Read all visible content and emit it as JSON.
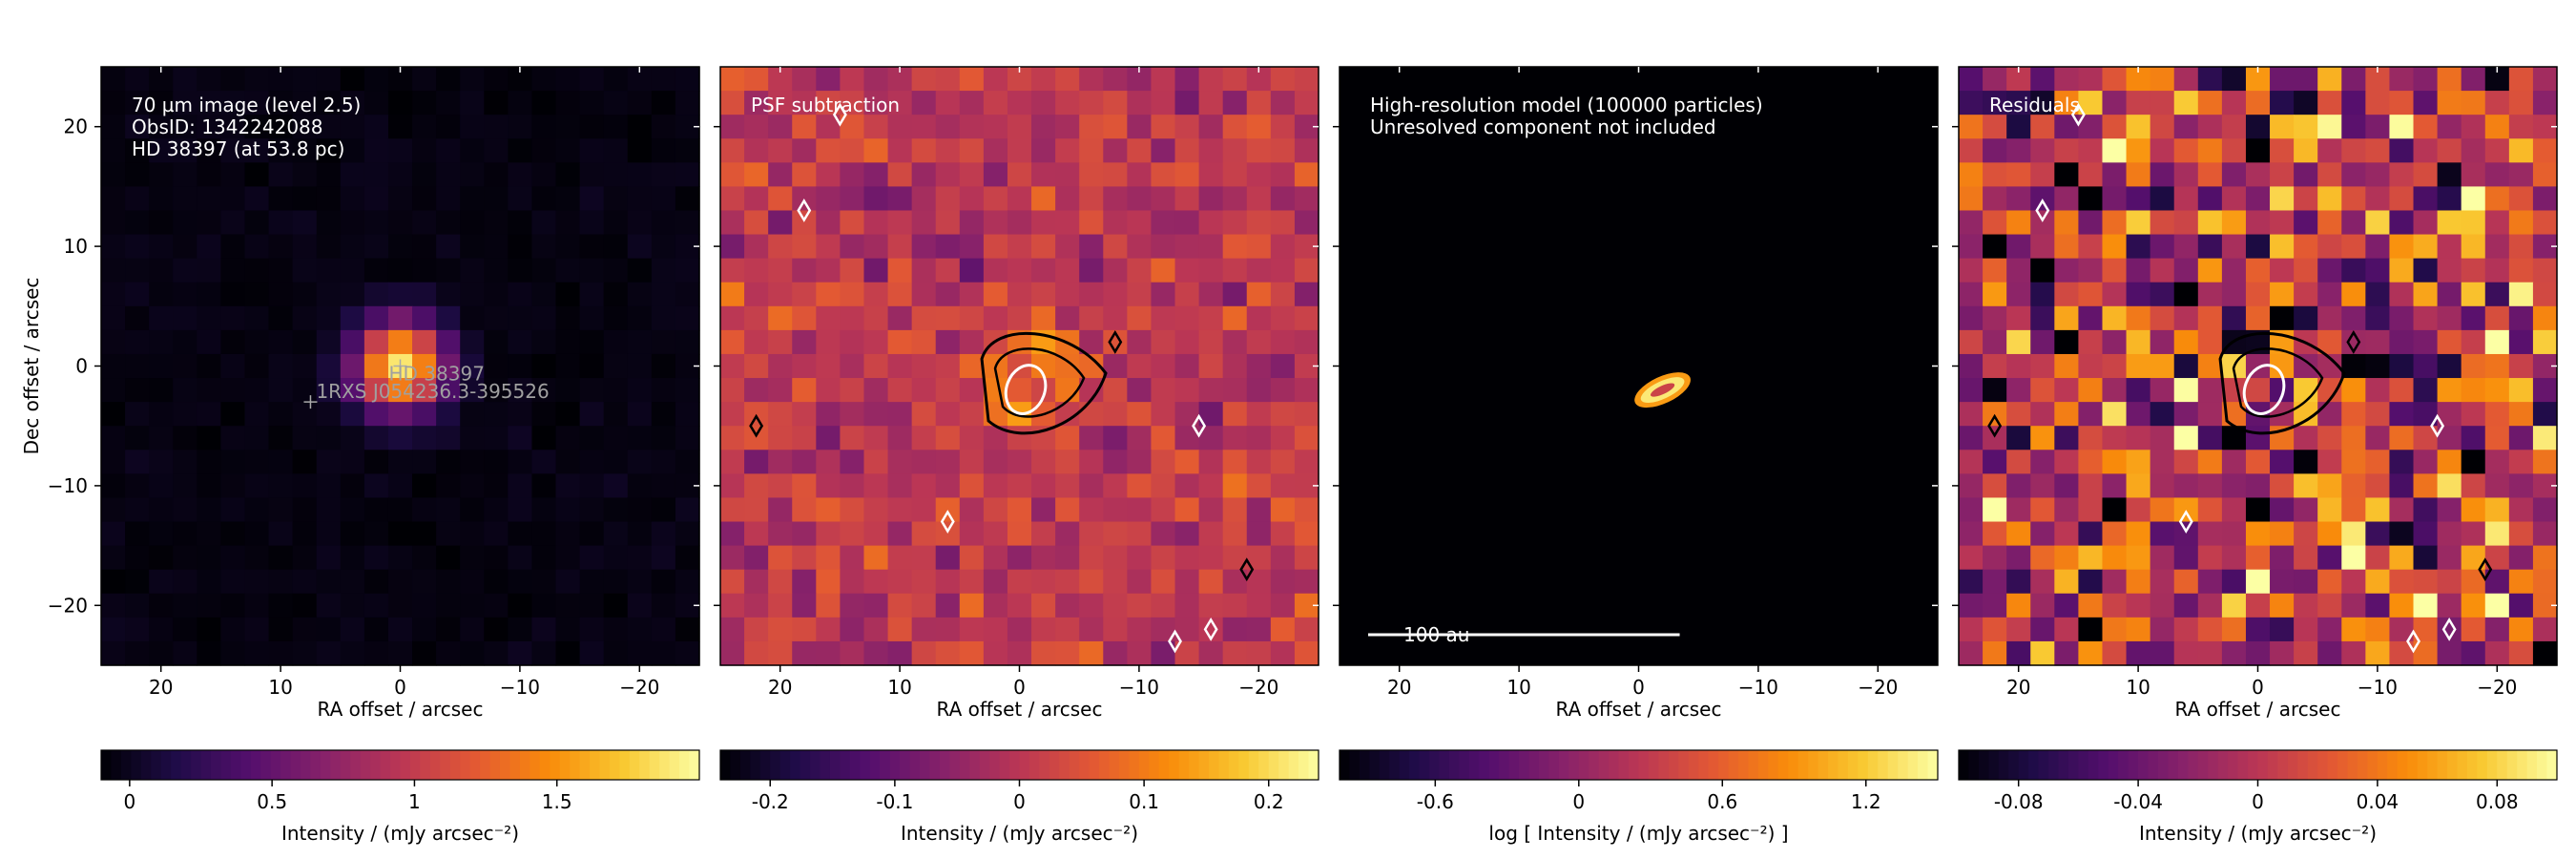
{
  "chart_data": [
    {
      "type": "heatmap",
      "panel": "observation",
      "annotations": [
        "70 µm image (level 2.5)",
        "ObsID: 1342242088",
        "HD 38397 (at 53.8 pc)"
      ],
      "sources": [
        {
          "label": "HD 38397",
          "ra": 0.0,
          "dec": 0.0
        },
        {
          "label": "1RXS J054236.3-395526",
          "ra": 7.5,
          "dec": -3.0
        }
      ],
      "xlabel": "RA offset / arcsec",
      "ylabel": "Dec offset / arcsec",
      "xlim": [
        25,
        -25
      ],
      "ylim": [
        -25,
        25
      ],
      "x_ticks": [
        "20",
        "10",
        "0",
        "−10",
        "−20"
      ],
      "y_ticks": [
        "20",
        "10",
        "0",
        "−10",
        "−20"
      ],
      "colormap": "inferno",
      "colorbar": {
        "label": "Intensity / (mJy arcsec⁻²)",
        "range": [
          -0.1,
          2.0
        ],
        "ticks": [
          0,
          0.5,
          1,
          1.5
        ],
        "tick_labels": [
          "0",
          "0.5",
          "1",
          "1.5"
        ]
      },
      "source_model": {
        "peak": 1.95,
        "sigma_arcsec": 2.6,
        "background": -0.05
      }
    },
    {
      "type": "heatmap",
      "panel": "psf-subtraction",
      "annotations": [
        "PSF subtraction"
      ],
      "xlabel": "RA offset / arcsec",
      "xlim": [
        25,
        -25
      ],
      "ylim": [
        -25,
        25
      ],
      "x_ticks": [
        "20",
        "10",
        "0",
        "−10",
        "−20"
      ],
      "colormap": "inferno",
      "colorbar": {
        "label": "Intensity / (mJy arcsec⁻²)",
        "range": [
          -0.24,
          0.24
        ],
        "ticks": [
          -0.2,
          -0.1,
          0,
          0.1,
          0.2
        ],
        "tick_labels": [
          "-0.2",
          "-0.1",
          "0",
          "0.1",
          "0.2"
        ]
      },
      "contours": {
        "positive_color": "#000000",
        "negative_color": "#ffffff"
      }
    },
    {
      "type": "heatmap",
      "panel": "model",
      "annotations": [
        "High-resolution model (100000 particles)",
        "Unresolved component not included"
      ],
      "scale_bar": {
        "label": "100 au",
        "length_arcsec": 1.86
      },
      "xlabel": "RA offset / arcsec",
      "xlim": [
        25,
        -25
      ],
      "ylim": [
        -25,
        25
      ],
      "x_ticks": [
        "20",
        "10",
        "0",
        "−10",
        "−20"
      ],
      "colormap": "inferno",
      "colorbar": {
        "label": "log [ Intensity / (mJy arcsec⁻²) ]",
        "range": [
          -1.0,
          1.5
        ],
        "ticks": [
          -0.6,
          0,
          0.6,
          1.2
        ],
        "tick_labels": [
          "-0.6",
          "0",
          "0.6",
          "1.2"
        ]
      },
      "disk_model": {
        "center_ra": -2.0,
        "center_dec": -2.0,
        "semi_major_arcsec": 2.2,
        "semi_minor_arcsec": 0.5,
        "position_angle_deg": 25
      }
    },
    {
      "type": "heatmap",
      "panel": "residuals",
      "annotations": [
        "Residuals"
      ],
      "xlabel": "RA offset / arcsec",
      "xlim": [
        25,
        -25
      ],
      "ylim": [
        -25,
        25
      ],
      "x_ticks": [
        "20",
        "10",
        "0",
        "−10",
        "−20"
      ],
      "colormap": "inferno",
      "colorbar": {
        "label": "Intensity / (mJy arcsec⁻²)",
        "range": [
          -0.1,
          0.1
        ],
        "ticks": [
          -0.08,
          -0.04,
          0,
          0.04,
          0.08
        ],
        "tick_labels": [
          "-0.08",
          "-0.04",
          "0",
          "0.04",
          "0.08"
        ]
      },
      "contours": {
        "positive_color": "#000000",
        "negative_color": "#ffffff"
      }
    }
  ]
}
